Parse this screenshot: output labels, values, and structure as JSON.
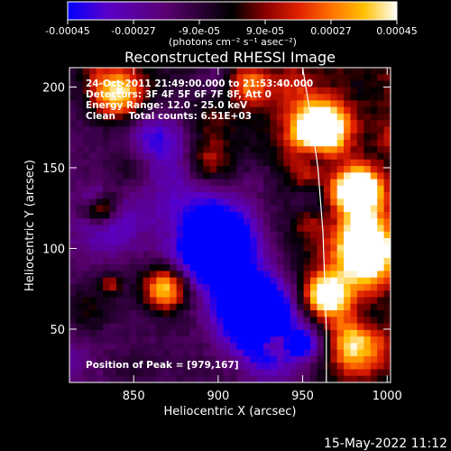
{
  "chart_data": {
    "type": "heatmap",
    "title": "Reconstructed RHESSI Image",
    "xlabel": "Heliocentric X (arcsec)",
    "ylabel": "Heliocentric Y (arcsec)",
    "xlim": [
      812,
      1002
    ],
    "ylim": [
      17,
      212
    ],
    "x_ticks": [
      850,
      900,
      950,
      1000
    ],
    "y_ticks": [
      50,
      100,
      150,
      200
    ],
    "colorbar": {
      "ticks": [
        "-0.00045",
        "-0.00027",
        "-9.0e-05",
        "9.0e-05",
        "0.00027",
        "0.00045"
      ],
      "unit_label": "(photons cm⁻² s⁻¹ asec⁻²)",
      "range": [
        -0.00045,
        0.00045
      ],
      "colors": [
        "#0000ff",
        "#5a00c8",
        "#5a0070",
        "#000000",
        "#8a0000",
        "#e02000",
        "#ff7000",
        "#ffc000",
        "#ffffff"
      ]
    },
    "annotations": [
      "24-Oct-2011 21:49:00.000 to 21:53:40.000",
      "Detectors: 3F 4F 5F 6F 7F 8F, Att 0",
      "Energy Range: 12.0 - 25.0 keV",
      "Clean    Total counts: 6.51E+03"
    ],
    "peak_label": "Position of Peak = [979,167]",
    "peak_position": [
      979,
      167
    ],
    "limb_curve": [
      [
        950,
        212
      ],
      [
        955,
        180
      ],
      [
        959,
        150
      ],
      [
        962,
        110
      ],
      [
        963,
        80
      ],
      [
        964,
        50
      ],
      [
        964,
        17
      ]
    ]
  },
  "footer": {
    "timestamp": "15-May-2022 11:12"
  }
}
